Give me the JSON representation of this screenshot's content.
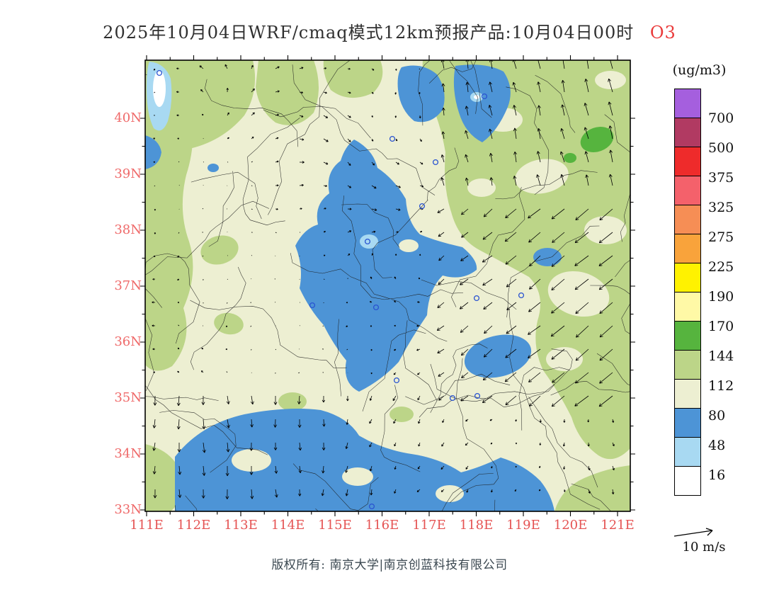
{
  "title": {
    "text": "2025年10月04日WRF/cmaq模式12km预报产品:10月04日00时",
    "species": "O3"
  },
  "axes": {
    "lat_labels": [
      "40N",
      "39N",
      "38N",
      "37N",
      "36N",
      "35N",
      "34N",
      "33N"
    ],
    "lon_labels": [
      "111E",
      "112E",
      "113E",
      "114E",
      "115E",
      "116E",
      "117E",
      "118E",
      "119E",
      "120E",
      "121E"
    ]
  },
  "legend": {
    "units": "(ug/m3)",
    "levels": [
      700,
      500,
      375,
      325,
      275,
      225,
      190,
      170,
      144,
      112,
      80,
      48,
      16
    ],
    "colors": [
      "#A55FDE",
      "#B13A62",
      "#EE2B2B",
      "#F4616B",
      "#F68E55",
      "#F9A33B",
      "#FFF200",
      "#FFF9A6",
      "#56B43E",
      "#BCD588",
      "#EDEFD2",
      "#4D94D6",
      "#A8D9F2",
      "#FFFFFF"
    ]
  },
  "wind_legend": {
    "label": "10 m/s"
  },
  "footer": {
    "text": "版权所有: 南京大学|南京创蓝科技有限公司"
  },
  "colors": {
    "title_accent": "#EA3B3B",
    "lat_labels": "#EF6A6A",
    "lon_labels": "#E55353",
    "map_cream": "#EDEFD2",
    "map_yellowgreen": "#BCD588",
    "map_green": "#56B43E",
    "map_blue": "#4D94D6",
    "map_lightblue": "#A8D9F2",
    "map_white": "#FFFFFF",
    "boundaries": "#1B1B1B",
    "wind_vectors": "#000000",
    "station_marker": "#2953D1"
  },
  "chart_data": {
    "type": "heatmap",
    "title": "2025年10月04日WRF/cmaq模式12km预报产品:10月04日00时 O3",
    "variable": "O3 surface concentration forecast",
    "model": "WRF/cmaq 12km",
    "units": "ug/m3",
    "valid_time": "10月04日00时",
    "x_axis": {
      "label": "longitude",
      "ticks": [
        "111E",
        "112E",
        "113E",
        "114E",
        "115E",
        "116E",
        "117E",
        "118E",
        "119E",
        "120E",
        "121E"
      ],
      "range_deg_e": [
        111,
        121.3
      ]
    },
    "y_axis": {
      "label": "latitude",
      "ticks": [
        "40N",
        "39N",
        "38N",
        "37N",
        "36N",
        "35N",
        "34N",
        "33N"
      ],
      "range_deg_n": [
        33,
        41.1
      ]
    },
    "contour_levels": [
      16,
      48,
      80,
      112,
      144,
      170,
      190,
      225,
      275,
      325,
      375,
      500,
      700
    ],
    "bands": [
      {
        "range": "<16",
        "color": "#FFFFFF"
      },
      {
        "range": "16-48",
        "color": "#A8D9F2"
      },
      {
        "range": "48-80",
        "color": "#4D94D6"
      },
      {
        "range": "80-112",
        "color": "#EDEFD2"
      },
      {
        "range": "112-144",
        "color": "#BCD588"
      },
      {
        "range": "144-170",
        "color": "#56B43E"
      },
      {
        "range": "170-190",
        "color": "#FFF9A6"
      },
      {
        "range": "190-225",
        "color": "#FFF200"
      },
      {
        "range": "225-275",
        "color": "#F9A33B"
      },
      {
        "range": "275-325",
        "color": "#F68E55"
      },
      {
        "range": "325-375",
        "color": "#F4616B"
      },
      {
        "range": "375-500",
        "color": "#EE2B2B"
      },
      {
        "range": "500-700",
        "color": "#B13A62"
      },
      {
        "range": ">700",
        "color": "#A55FDE"
      }
    ],
    "observed_range_on_map": [
      0,
      170
    ],
    "field_summary": [
      {
        "level": "48-80 blue",
        "where": "large central mass ~36.5-38.5N, 114.5-117E; southern band ~33-34.2N, 111.5-118.5E; patches near 39.5-40.7N, 116.5-117.5E; blob ~35N, 117.5-119E"
      },
      {
        "level": "16-48 light blue",
        "where": "NW corner pocket ~40-40.7N, 111.2E; spot ~37.8N, 115.7E inside central blue; spot ~40N, 117.6E"
      },
      {
        "level": "<16 white",
        "where": "tiny core inside NW corner pocket"
      },
      {
        "level": "80-112 cream",
        "where": "dominant background over most of the domain"
      },
      {
        "level": "112-144 yellow-green",
        "where": "broad eastern third ~117.5-121.3E; western edge ~111-112E; NW corner block; scattered interior patches; SW and SE corners"
      },
      {
        "level": "144-170 green",
        "where": "small spot near 40.3N, 120.5E"
      }
    ],
    "wind_vectors": {
      "shown": true,
      "reference_speed": "10 m/s",
      "pattern": "northward flow over northeast quadrant; strong southwestward flow over eastern third; southward flow along southern rows; weak variable flow in center"
    },
    "station_markers": "small hollow blue circles scattered across map",
    "legend_position": "right",
    "grid": false
  }
}
